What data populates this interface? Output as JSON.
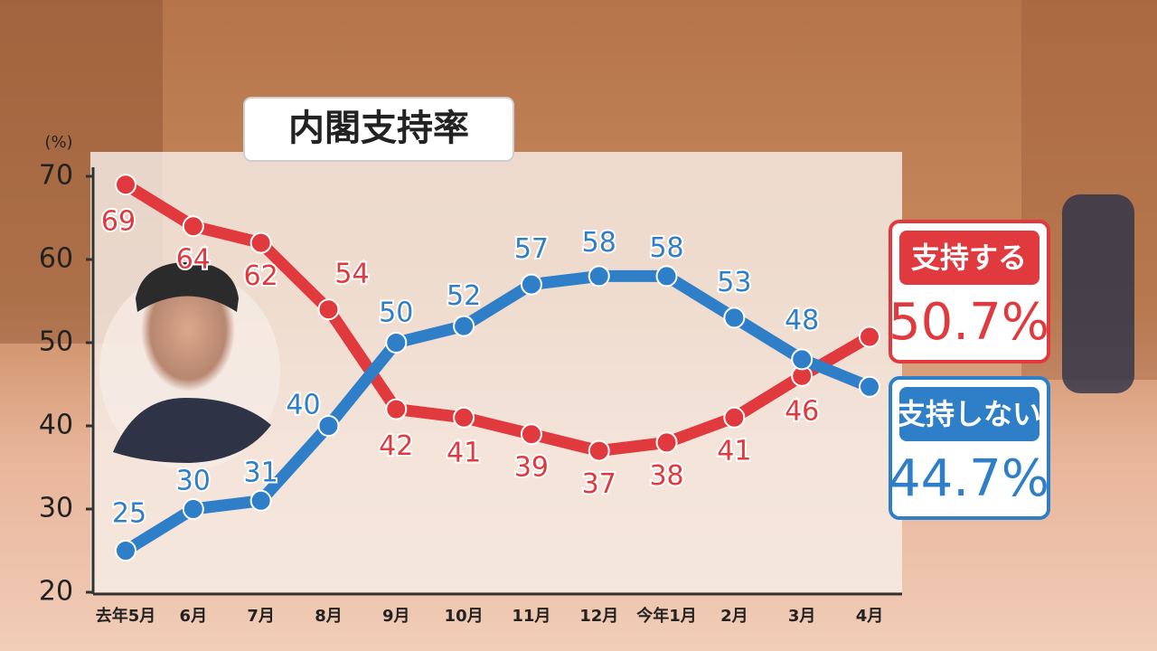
{
  "chart_data": {
    "type": "line",
    "title": "内閣支持率",
    "y_label": "(%)",
    "categories": [
      "去年5月",
      "6月",
      "7月",
      "8月",
      "9月",
      "10月",
      "11月",
      "12月",
      "今年1月",
      "2月",
      "3月",
      "4月"
    ],
    "series": [
      {
        "name": "支持する",
        "color": "#e0393e",
        "values": [
          69,
          64,
          62,
          54,
          42,
          41,
          39,
          37,
          38,
          41,
          46,
          50.7
        ],
        "value_labels": [
          "69",
          "64",
          "62",
          "54",
          "42",
          "41",
          "39",
          "37",
          "38",
          "41",
          "46",
          "50.7%"
        ]
      },
      {
        "name": "支持しない",
        "color": "#2f7fc8",
        "values": [
          25,
          30,
          31,
          40,
          50,
          52,
          57,
          58,
          58,
          53,
          48,
          44.7
        ],
        "value_labels": [
          "25",
          "30",
          "31",
          "40",
          "50",
          "52",
          "57",
          "58",
          "58",
          "53",
          "48",
          "44.7%"
        ]
      }
    ],
    "ylim": [
      20,
      70
    ],
    "yticks": [
      20,
      30,
      40,
      50,
      60,
      70
    ]
  }
}
